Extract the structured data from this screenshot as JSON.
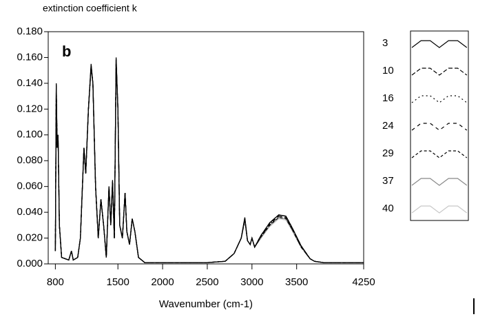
{
  "chart_data": {
    "type": "line",
    "y_axis_label": "extinction coefficient k",
    "annotation": "b",
    "x_axis_label": "Wavenumber (cm-1)",
    "xlim": [
      720,
      4250
    ],
    "xticks": [
      800,
      1500,
      2000,
      2500,
      3000,
      3500,
      4250
    ],
    "ylim": [
      0,
      0.18
    ],
    "yticks": [
      {
        "value": 0,
        "label": "0.000"
      },
      {
        "value": 0.02,
        "label": "0.020"
      },
      {
        "value": 0.04,
        "label": "0.040"
      },
      {
        "value": 0.06,
        "label": "0.060"
      },
      {
        "value": 0.08,
        "label": "0.080"
      },
      {
        "value": 0.1,
        "label": "0.100"
      },
      {
        "value": 0.12,
        "label": "0.120"
      },
      {
        "value": 0.14,
        "label": "0.140"
      },
      {
        "value": 0.16,
        "label": "0.160"
      },
      {
        "value": 0.18,
        "label": "0.180"
      }
    ],
    "x": [
      800,
      810,
      820,
      830,
      845,
      870,
      950,
      980,
      1000,
      1050,
      1080,
      1120,
      1140,
      1170,
      1200,
      1220,
      1250,
      1280,
      1310,
      1340,
      1370,
      1400,
      1420,
      1440,
      1460,
      1480,
      1500,
      1520,
      1550,
      1580,
      1600,
      1630,
      1660,
      1690,
      1730,
      1800,
      2000,
      2500,
      2700,
      2800,
      2880,
      2920,
      2950,
      2980,
      3000,
      3030,
      3100,
      3200,
      3300,
      3380,
      3450,
      3550,
      3650,
      3700,
      3800,
      4000,
      4250
    ],
    "series": [
      {
        "name": "3",
        "color": "#000000",
        "dash": "",
        "values": [
          0.01,
          0.14,
          0.09,
          0.1,
          0.03,
          0.005,
          0.003,
          0.01,
          0.003,
          0.005,
          0.02,
          0.09,
          0.07,
          0.12,
          0.155,
          0.14,
          0.06,
          0.02,
          0.05,
          0.03,
          0.005,
          0.06,
          0.03,
          0.065,
          0.02,
          0.16,
          0.12,
          0.03,
          0.02,
          0.055,
          0.025,
          0.015,
          0.035,
          0.025,
          0.005,
          0.001,
          0.001,
          0.001,
          0.002,
          0.008,
          0.02,
          0.036,
          0.018,
          0.015,
          0.02,
          0.013,
          0.022,
          0.032,
          0.038,
          0.037,
          0.028,
          0.014,
          0.004,
          0.002,
          0.001,
          0.001,
          0.001
        ]
      },
      {
        "name": "10",
        "color": "#000000",
        "dash": "6,3",
        "values": [
          0.01,
          0.139,
          0.09,
          0.1,
          0.03,
          0.005,
          0.003,
          0.01,
          0.003,
          0.005,
          0.02,
          0.09,
          0.07,
          0.12,
          0.154,
          0.14,
          0.06,
          0.02,
          0.05,
          0.03,
          0.005,
          0.06,
          0.03,
          0.064,
          0.02,
          0.159,
          0.12,
          0.03,
          0.02,
          0.055,
          0.025,
          0.015,
          0.035,
          0.025,
          0.005,
          0.001,
          0.001,
          0.001,
          0.002,
          0.008,
          0.02,
          0.035,
          0.018,
          0.015,
          0.02,
          0.013,
          0.022,
          0.032,
          0.038,
          0.037,
          0.028,
          0.014,
          0.004,
          0.002,
          0.001,
          0.001,
          0.001
        ]
      },
      {
        "name": "16",
        "color": "#000000",
        "dash": "2,4",
        "values": [
          0.01,
          0.139,
          0.09,
          0.1,
          0.03,
          0.005,
          0.003,
          0.01,
          0.003,
          0.005,
          0.02,
          0.09,
          0.07,
          0.12,
          0.154,
          0.14,
          0.06,
          0.02,
          0.05,
          0.03,
          0.005,
          0.06,
          0.03,
          0.064,
          0.02,
          0.159,
          0.12,
          0.03,
          0.02,
          0.055,
          0.025,
          0.015,
          0.035,
          0.025,
          0.005,
          0.001,
          0.001,
          0.001,
          0.002,
          0.008,
          0.02,
          0.035,
          0.018,
          0.015,
          0.02,
          0.013,
          0.021,
          0.031,
          0.037,
          0.036,
          0.027,
          0.014,
          0.004,
          0.002,
          0.001,
          0.001,
          0.001
        ]
      },
      {
        "name": "24",
        "color": "#000000",
        "dash": "5,5",
        "values": [
          0.01,
          0.138,
          0.09,
          0.1,
          0.03,
          0.005,
          0.003,
          0.01,
          0.003,
          0.005,
          0.02,
          0.09,
          0.07,
          0.12,
          0.153,
          0.14,
          0.06,
          0.02,
          0.05,
          0.03,
          0.005,
          0.06,
          0.03,
          0.064,
          0.02,
          0.158,
          0.12,
          0.03,
          0.02,
          0.055,
          0.025,
          0.015,
          0.035,
          0.025,
          0.005,
          0.001,
          0.001,
          0.001,
          0.002,
          0.008,
          0.02,
          0.035,
          0.018,
          0.015,
          0.02,
          0.013,
          0.021,
          0.031,
          0.037,
          0.036,
          0.027,
          0.013,
          0.004,
          0.002,
          0.001,
          0.001,
          0.001
        ]
      },
      {
        "name": "29",
        "color": "#000000",
        "dash": "4,3",
        "values": [
          0.01,
          0.138,
          0.09,
          0.1,
          0.03,
          0.005,
          0.003,
          0.01,
          0.003,
          0.005,
          0.02,
          0.09,
          0.07,
          0.12,
          0.153,
          0.14,
          0.06,
          0.02,
          0.05,
          0.03,
          0.005,
          0.06,
          0.03,
          0.064,
          0.02,
          0.158,
          0.12,
          0.03,
          0.02,
          0.055,
          0.025,
          0.015,
          0.035,
          0.025,
          0.005,
          0.001,
          0.001,
          0.001,
          0.002,
          0.008,
          0.02,
          0.034,
          0.018,
          0.015,
          0.02,
          0.013,
          0.021,
          0.03,
          0.036,
          0.035,
          0.027,
          0.013,
          0.004,
          0.002,
          0.001,
          0.001,
          0.001
        ]
      },
      {
        "name": "37",
        "color": "#888888",
        "dash": "",
        "values": [
          0.01,
          0.137,
          0.09,
          0.1,
          0.03,
          0.005,
          0.003,
          0.01,
          0.003,
          0.005,
          0.02,
          0.09,
          0.07,
          0.12,
          0.152,
          0.14,
          0.06,
          0.02,
          0.05,
          0.03,
          0.005,
          0.06,
          0.03,
          0.063,
          0.02,
          0.157,
          0.12,
          0.03,
          0.02,
          0.055,
          0.025,
          0.015,
          0.035,
          0.025,
          0.005,
          0.001,
          0.001,
          0.001,
          0.002,
          0.008,
          0.02,
          0.034,
          0.018,
          0.015,
          0.02,
          0.013,
          0.02,
          0.03,
          0.036,
          0.035,
          0.026,
          0.013,
          0.004,
          0.002,
          0.001,
          0.001,
          0.001
        ]
      },
      {
        "name": "40",
        "color": "#c8c8c8",
        "dash": "",
        "values": [
          0.01,
          0.137,
          0.09,
          0.1,
          0.03,
          0.005,
          0.003,
          0.01,
          0.003,
          0.005,
          0.02,
          0.09,
          0.07,
          0.12,
          0.152,
          0.14,
          0.06,
          0.02,
          0.05,
          0.03,
          0.005,
          0.06,
          0.03,
          0.063,
          0.02,
          0.157,
          0.12,
          0.03,
          0.02,
          0.055,
          0.025,
          0.015,
          0.035,
          0.025,
          0.005,
          0.001,
          0.001,
          0.001,
          0.002,
          0.008,
          0.02,
          0.034,
          0.018,
          0.015,
          0.02,
          0.013,
          0.02,
          0.029,
          0.035,
          0.034,
          0.026,
          0.013,
          0.004,
          0.002,
          0.001,
          0.001,
          0.001
        ]
      }
    ]
  }
}
